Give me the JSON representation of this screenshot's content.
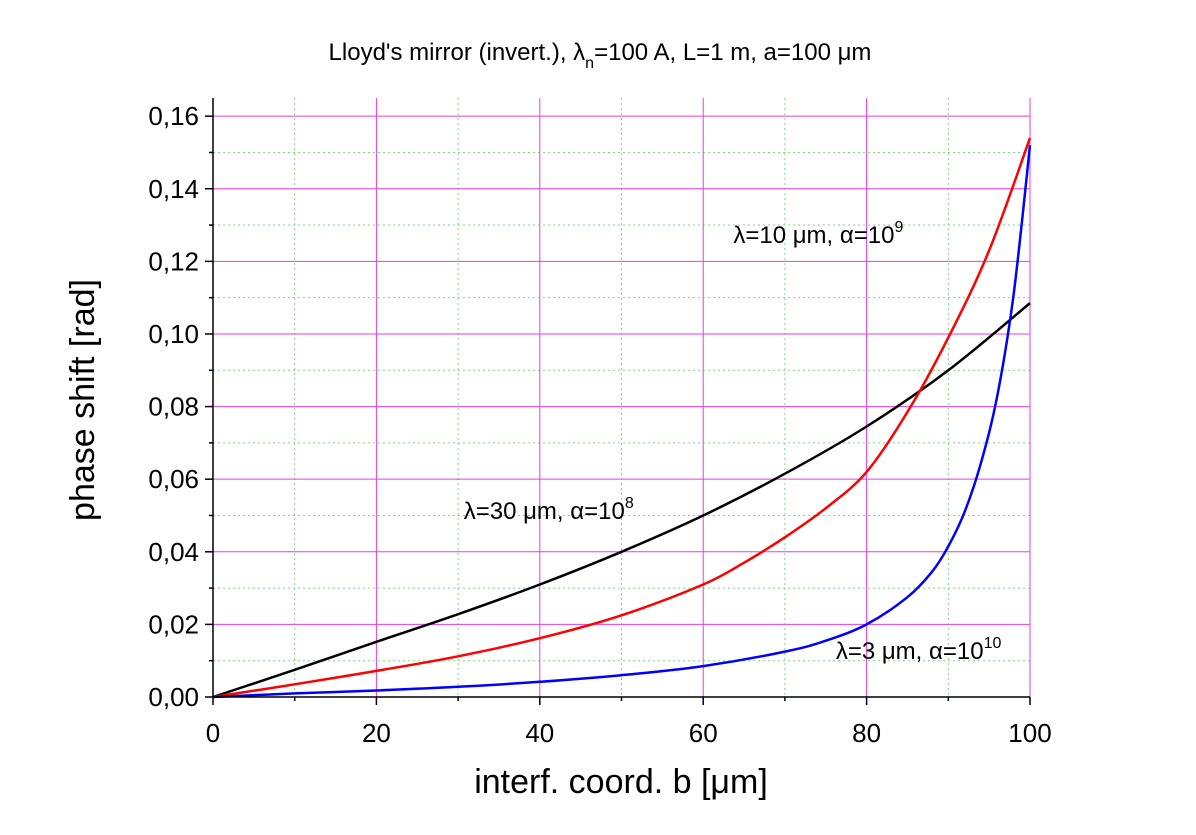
{
  "chart_data": {
    "type": "line",
    "title": {
      "prefix": "Lloyd's mirror (invert.), ",
      "lambda_symbol": "λ",
      "lambda_sub": "n",
      "suffix": "=100 A, L=1 m, a=100 μm"
    },
    "xlabel": "interf. coord. b [μm]",
    "ylabel": "phase shift [rad]",
    "xlim": [
      0,
      100
    ],
    "ylim": [
      0,
      0.165
    ],
    "x_ticks": [
      "0",
      "20",
      "40",
      "60",
      "80",
      "100"
    ],
    "y_ticks": [
      "0,00",
      "0,02",
      "0,04",
      "0,06",
      "0,08",
      "0,10",
      "0,12",
      "0,14",
      "0,16"
    ],
    "major_grid": true,
    "minor_grid": true,
    "colors": {
      "major_grid": "#e33fe3",
      "minor_grid": "#7fd97f",
      "axis": "#000000"
    },
    "series": [
      {
        "name": "λ=30 μm, α=10^8",
        "color": "#000000",
        "x": [
          0,
          10,
          20,
          30,
          40,
          50,
          60,
          70,
          80,
          90,
          100
        ],
        "y": [
          0,
          0.0075,
          0.0152,
          0.0228,
          0.031,
          0.04,
          0.05,
          0.0615,
          0.0745,
          0.09,
          0.1085
        ]
      },
      {
        "name": "λ=10 μm, α=10^9",
        "color": "#ff0000",
        "x": [
          0,
          10,
          20,
          30,
          40,
          50,
          60,
          65,
          70,
          75,
          80,
          85,
          90,
          95,
          100
        ],
        "y": [
          0,
          0.0035,
          0.0072,
          0.0112,
          0.0162,
          0.0225,
          0.031,
          0.037,
          0.044,
          0.052,
          0.062,
          0.0785,
          0.099,
          0.123,
          0.154
        ]
      },
      {
        "name": "λ=3 μm, α=10^10",
        "color": "#0000ff",
        "x": [
          0,
          10,
          20,
          30,
          40,
          50,
          60,
          70,
          75,
          80,
          85,
          88,
          90,
          92,
          94,
          96,
          98,
          100
        ],
        "y": [
          0,
          0.001,
          0.0018,
          0.0028,
          0.0042,
          0.006,
          0.0085,
          0.0125,
          0.0155,
          0.02,
          0.0275,
          0.0345,
          0.0415,
          0.051,
          0.0645,
          0.083,
          0.111,
          0.152
        ]
      }
    ],
    "annotations": [
      {
        "lambda_part": "λ=30 μm, ",
        "alpha_part": "α=10",
        "exponent": "8",
        "anchor_x": 51.5,
        "anchor_y": 0.049
      },
      {
        "lambda_part": "λ=10 μm, ",
        "alpha_part": "α=10",
        "exponent": "9",
        "anchor_x": 84.5,
        "anchor_y": 0.125
      },
      {
        "lambda_part": "λ=3 μm, ",
        "alpha_part": "α=10",
        "exponent": "10",
        "anchor_x": 96.5,
        "anchor_y": 0.0105
      }
    ]
  }
}
